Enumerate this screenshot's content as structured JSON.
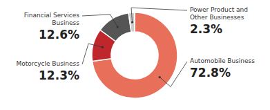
{
  "chart_data": {
    "type": "donut",
    "categories": [
      "Automobile Business",
      "Motorcycle Business",
      "Financial Services\nBusiness",
      "Power Product and\nOther Businesses"
    ],
    "values": [
      72.8,
      12.3,
      12.6,
      2.3
    ],
    "value_labels": [
      "72.8%",
      "12.3%",
      "12.6%",
      "2.3%"
    ],
    "colors": [
      "#E8705A",
      "#C0272D",
      "#555555",
      "#CCCCCC"
    ]
  }
}
